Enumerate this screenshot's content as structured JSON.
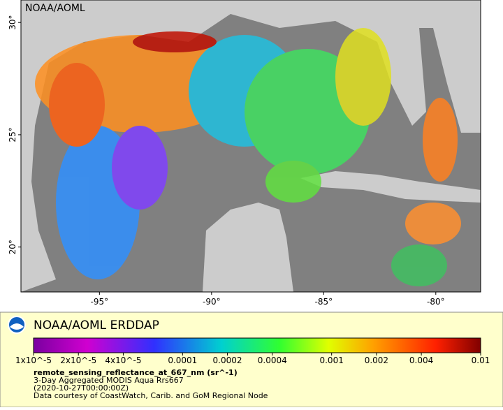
{
  "map": {
    "source_label": "NOAA/AOML",
    "xlim": [
      -98.5,
      -78
    ],
    "ylim": [
      18,
      31
    ],
    "xticks": [
      {
        "value": -95,
        "label": "-95°"
      },
      {
        "value": -90,
        "label": "-90°"
      },
      {
        "value": -85,
        "label": "-85°"
      },
      {
        "value": -80,
        "label": "-80°"
      }
    ],
    "yticks": [
      {
        "value": 20,
        "label": "20°"
      },
      {
        "value": 25,
        "label": "25°"
      },
      {
        "value": 30,
        "label": "30°"
      }
    ]
  },
  "legend": {
    "title": "NOAA/AOML ERDDAP",
    "colorbar": {
      "lim": [
        1e-05,
        0.01
      ],
      "log": true,
      "ticks": [
        {
          "value": 1e-05,
          "label": "1x10^-5"
        },
        {
          "value": 2e-05,
          "label": "2x10^-5"
        },
        {
          "value": 4e-05,
          "label": "4x10^-5"
        },
        0.0001,
        0.0002,
        0.0004,
        0.001,
        0.002,
        0.004,
        0.01
      ]
    },
    "variable": "remote_sensing_reflectance_at_667_nm (sr^-1)",
    "lines": [
      "3-Day Aggregated MODIS Aqua Rrs667",
      "(2020-10-27T00:00:00Z)",
      "Data courtesy of CoastWatch, Carib. and GoM Regional Node"
    ]
  }
}
